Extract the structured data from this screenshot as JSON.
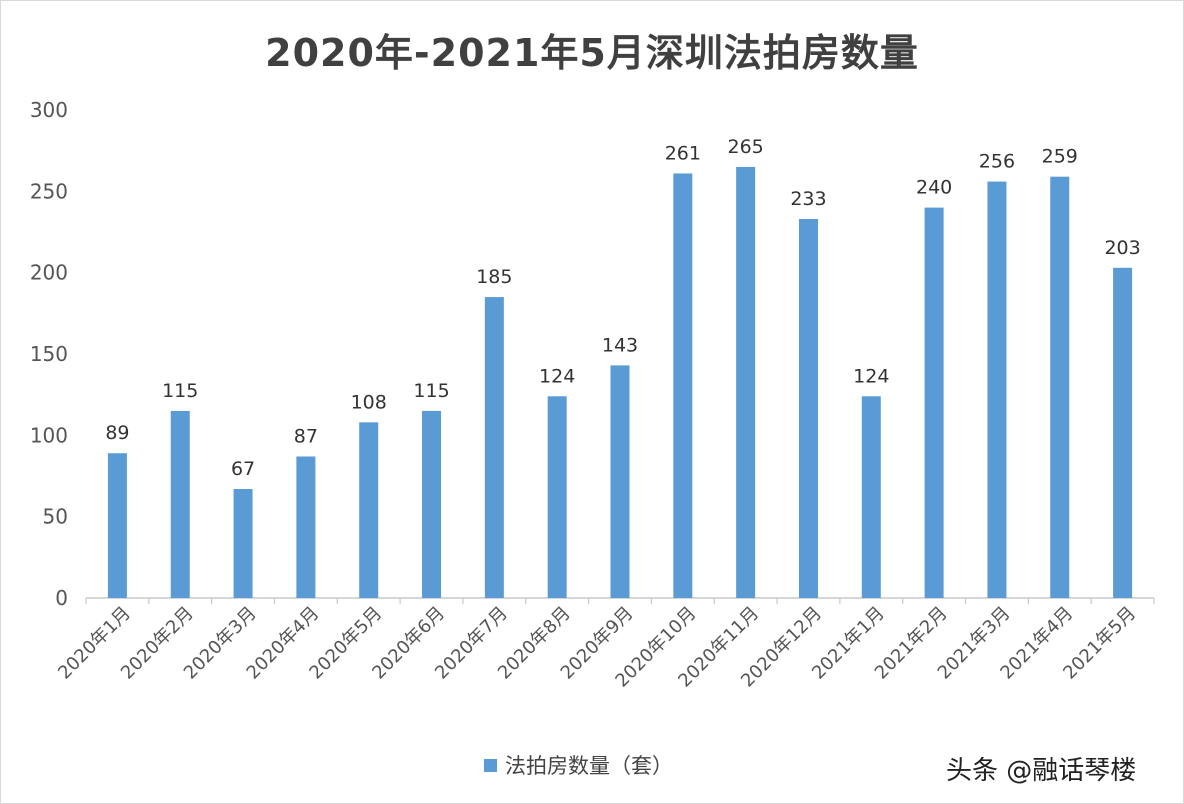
{
  "chart_data": {
    "type": "bar",
    "title": "2020年-2021年5月深圳法拍房数量",
    "categories": [
      "2020年1月",
      "2020年2月",
      "2020年3月",
      "2020年4月",
      "2020年5月",
      "2020年6月",
      "2020年7月",
      "2020年8月",
      "2020年9月",
      "2020年10月",
      "2020年11月",
      "2020年12月",
      "2021年1月",
      "2021年2月",
      "2021年3月",
      "2021年4月",
      "2021年5月"
    ],
    "series": [
      {
        "name": "法拍房数量（套）",
        "values": [
          89,
          115,
          67,
          87,
          108,
          115,
          185,
          124,
          143,
          261,
          265,
          233,
          124,
          240,
          256,
          259,
          203
        ]
      }
    ],
    "ylim": [
      0,
      300
    ],
    "yticks": [
      0,
      50,
      100,
      150,
      200,
      250,
      300
    ],
    "grid": false,
    "legend_position": "bottom",
    "data_labels": true,
    "bar_color": "#5b9bd5"
  },
  "watermark": "头条 @融话琴楼"
}
